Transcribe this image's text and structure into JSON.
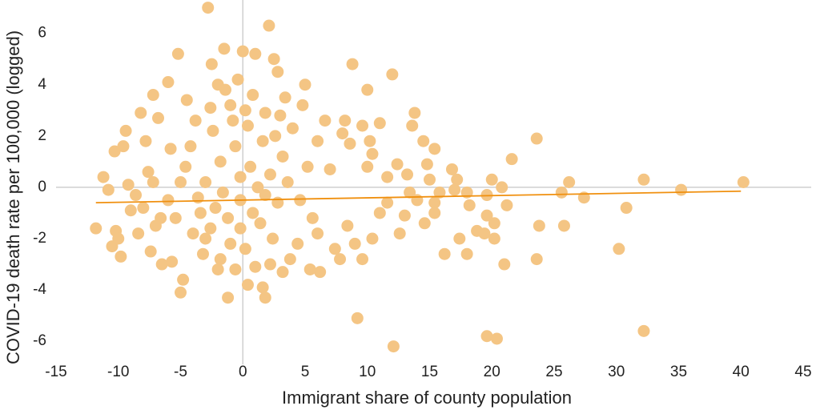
{
  "chart_data": {
    "type": "scatter",
    "xlabel": "Immigrant share of county population",
    "ylabel": "COVID-19 death rate per 100,000 (logged)",
    "xlim": [
      -15,
      45
    ],
    "ylim": [
      -6.9,
      7.3
    ],
    "xticks": [
      -15,
      -10,
      -5,
      0,
      5,
      10,
      15,
      20,
      25,
      30,
      35,
      40,
      45
    ],
    "yticks": [
      -6,
      -4,
      -2,
      0,
      2,
      4,
      6
    ],
    "grid": false,
    "color": "#f4c584",
    "x": [
      -11.8,
      -11.2,
      -10.8,
      -10.5,
      -10.3,
      -10.2,
      -10,
      -9.8,
      -9.6,
      -9.4,
      -9.2,
      -9,
      -8.6,
      -8.2,
      -8,
      -7.8,
      -7.6,
      -7.4,
      -7.2,
      -7,
      -6.8,
      -6.5,
      -6,
      -5.7,
      -5,
      -5.2,
      -4.8,
      -4.5,
      -2.8,
      -2.5,
      -1.5,
      -1.2,
      0,
      1,
      2.1,
      1.8,
      2.5,
      2.8,
      5,
      8.8,
      10,
      12,
      11.6,
      9.2,
      12.1,
      13.8,
      13.6,
      14.5,
      15.4,
      14.8,
      16.8,
      17.2,
      17,
      18,
      18.2,
      17.4,
      18.8,
      19.4,
      19.6,
      19.6,
      20,
      20.2,
      20.2,
      20.8,
      21,
      21.2,
      21.6,
      23.6,
      23.6,
      23.8,
      25.6,
      25.8,
      26.2,
      27.4,
      30.2,
      30.8,
      32.2,
      32.2,
      35.2,
      40.2,
      19.6,
      20.4,
      16.2,
      18,
      9.6,
      7.8,
      6.2,
      5.4,
      10,
      10.4,
      10.2,
      11,
      9.6,
      8.6,
      11.6,
      12.6,
      13,
      14,
      15.4,
      14.6,
      15.4,
      12.4,
      13.2,
      15,
      15.8,
      13.4,
      11,
      10.4,
      8.4,
      9,
      7.4,
      6,
      7,
      8,
      6.6,
      8.2,
      4.8,
      3.4,
      4,
      6,
      5.2,
      4.6,
      5.6,
      3.8,
      4.4,
      3.2,
      1.6,
      0.4,
      -0.6,
      -2,
      -3.2,
      -4,
      -5.4,
      -6,
      -4.6,
      -5.8,
      -3.8,
      -2.6,
      -1.4,
      -0.4,
      0.8,
      1.8,
      2.6,
      3.2,
      2.2,
      1.2,
      -0.2,
      -1.2,
      -2.2,
      -3,
      -1.8,
      -0.6,
      0.6,
      1.4,
      2.4,
      0.2,
      -1,
      -2.6,
      -3.6,
      -4.2,
      -2.4,
      -0.8,
      0.4,
      1.6,
      2.8,
      3.6,
      -1.6,
      0.8,
      -0.2,
      -3.4,
      -5,
      -6.6,
      -7.2,
      -8.4,
      2.2,
      -1.8,
      1,
      3,
      -1,
      0.2,
      -2,
      -0.2,
      1.8,
      -3
    ],
    "values": [
      -1.6,
      0.4,
      -0.1,
      -2.3,
      1.4,
      -1.7,
      -2.0,
      -2.7,
      1.6,
      2.2,
      0.1,
      -0.9,
      -0.3,
      2.9,
      -0.8,
      1.8,
      0.6,
      -2.5,
      3.6,
      -1.5,
      2.7,
      -3.0,
      4.1,
      -2.9,
      -4.1,
      5.2,
      -3.6,
      3.4,
      7.0,
      4.8,
      5.4,
      -4.3,
      5.3,
      5.2,
      6.3,
      -4.3,
      5.0,
      4.5,
      4.0,
      4.8,
      3.8,
      4.4,
      -0.6,
      -5.1,
      -6.2,
      2.9,
      2.4,
      1.8,
      1.5,
      0.9,
      0.7,
      0.3,
      -0.1,
      -0.2,
      -0.7,
      -2.0,
      -1.7,
      -1.8,
      -1.1,
      -0.3,
      0.3,
      -1.4,
      -2.0,
      0.0,
      -3.0,
      -0.7,
      1.1,
      1.9,
      -2.8,
      -1.5,
      -0.2,
      -1.5,
      0.2,
      -0.4,
      -2.4,
      -0.8,
      0.3,
      -5.6,
      -0.1,
      0.2,
      -5.8,
      -5.9,
      -2.6,
      -2.6,
      -2.8,
      -2.8,
      -3.3,
      -3.2,
      0.8,
      1.3,
      1.8,
      2.5,
      2.4,
      1.7,
      0.4,
      -1.8,
      -1.1,
      -0.5,
      -0.6,
      -1.4,
      -1.0,
      0.9,
      0.5,
      0.3,
      -0.2,
      -0.2,
      -1.0,
      -2.0,
      -1.5,
      -2.2,
      -2.4,
      -1.8,
      0.7,
      2.1,
      2.6,
      2.6,
      3.2,
      3.5,
      2.3,
      1.8,
      0.8,
      -0.5,
      -1.2,
      -2.8,
      -2.2,
      -3.3,
      -3.9,
      -3.8,
      -3.2,
      -3.2,
      -2.6,
      -1.8,
      -1.2,
      -0.5,
      0.8,
      1.5,
      2.6,
      3.1,
      3.8,
      4.2,
      3.6,
      2.9,
      2.0,
      1.2,
      0.5,
      0.0,
      -0.5,
      -1.2,
      -0.8,
      0.2,
      1.0,
      1.6,
      0.8,
      -1.4,
      -2.0,
      -2.4,
      -2.2,
      -1.6,
      -0.4,
      1.6,
      2.2,
      2.6,
      2.4,
      1.8,
      -0.6,
      0.2,
      -0.2,
      -1.0,
      0.4,
      -1.0,
      0.2,
      -1.2,
      0.2,
      -1.8,
      -3.0,
      -2.8,
      -3.1,
      2.8,
      3.2,
      3.0,
      4.0,
      -1.6,
      -0.3,
      -2.0
    ],
    "trendline": {
      "color": "#f0900f",
      "x": [
        -11.8,
        40
      ],
      "values": [
        -0.6,
        -0.15
      ]
    }
  }
}
